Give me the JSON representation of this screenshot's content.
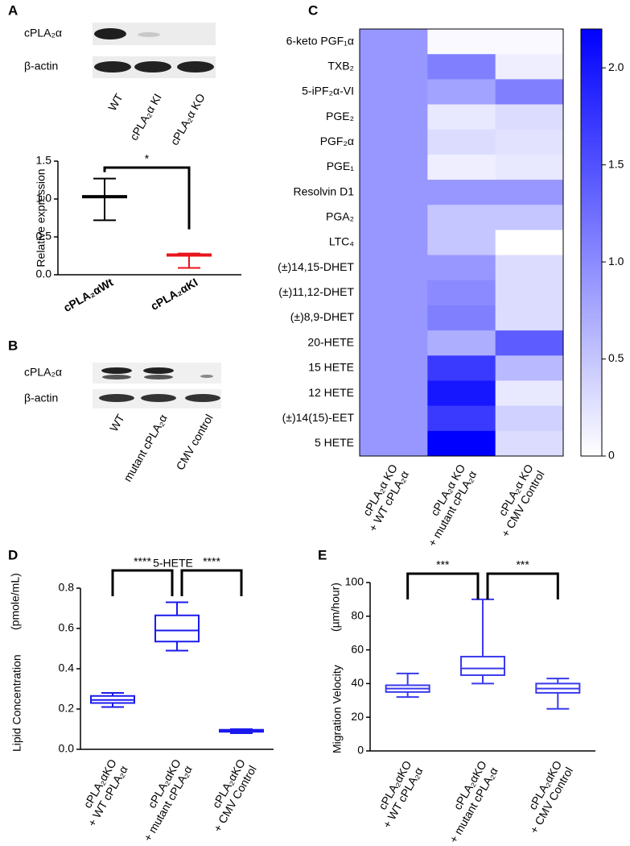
{
  "panel_labels": [
    "A",
    "B",
    "C",
    "D",
    "E"
  ],
  "blot_a": {
    "rows": [
      "cPLA₂α",
      "β-actin"
    ],
    "lanes": [
      "WT",
      "cPLA₂α KI",
      "cPLA₂α KO"
    ]
  },
  "blot_b": {
    "rows": [
      "cPLA₂α",
      "β-actin"
    ],
    "lanes": [
      "WT",
      "mutant cPLA₂α",
      "CMV control"
    ]
  },
  "chart_data": [
    {
      "type": "errorbar",
      "ylabel": "Relative expression",
      "categories": [
        "cPLA₂αWt",
        "cPLA₂αKI"
      ],
      "values": [
        1.03,
        0.26
      ],
      "lower": [
        0.72,
        0.09
      ],
      "upper": [
        1.27,
        0.28
      ],
      "colors": [
        "#000000",
        "#e8141b"
      ],
      "ylim": [
        0,
        1.5
      ],
      "yticks": [
        {
          "value": 0,
          "label": "0.0"
        },
        0.5,
        {
          "value": 1,
          "label": "1.0"
        },
        1.5
      ],
      "significance": [
        "*"
      ]
    },
    {
      "type": "heatmap",
      "rows": [
        "6-keto PGF₁α",
        "TXB₂",
        "5-iPF₂α-VI",
        "PGE₂",
        "PGF₂α",
        "PGE₁",
        "Resolvin D1",
        "PGA₂",
        "LTC₄",
        "(±)14,15-DHET",
        "(±)11,12-DHET",
        "(±)8,9-DHET",
        "20-HETE",
        "15 HETE",
        "12 HETE",
        "(±)14(15)-EET",
        "5 HETE"
      ],
      "columns": [
        [
          "cPLA₂α KO",
          "+ WT cPLA₂α"
        ],
        [
          "cPLA₂α KO",
          "+ mutant cPLA₂α"
        ],
        [
          "cPLA₂α KO",
          "+ CMV Control"
        ]
      ],
      "values": [
        [
          0.9,
          0.05,
          0.05
        ],
        [
          0.9,
          1.1,
          0.15
        ],
        [
          0.9,
          0.8,
          1.1
        ],
        [
          0.9,
          0.2,
          0.3
        ],
        [
          0.9,
          0.3,
          0.25
        ],
        [
          0.9,
          0.15,
          0.2
        ],
        [
          0.9,
          0.9,
          0.9
        ],
        [
          0.9,
          0.5,
          0.5
        ],
        [
          0.9,
          0.5,
          0
        ],
        [
          0.9,
          0.9,
          0.3
        ],
        [
          0.9,
          1.0,
          0.3
        ],
        [
          0.9,
          1.1,
          0.3
        ],
        [
          0.9,
          0.7,
          1.4
        ],
        [
          0.9,
          1.7,
          0.6
        ],
        [
          0.9,
          2.0,
          0.2
        ],
        [
          0.9,
          1.7,
          0.4
        ],
        [
          0.9,
          2.2,
          0.3
        ]
      ],
      "color": "#0000ff",
      "clim": [
        0,
        2.2
      ],
      "cticks": [
        0,
        0.5,
        {
          "value": 1,
          "label": "1.0"
        },
        1.5,
        {
          "value": 2,
          "label": "2.0"
        }
      ]
    },
    {
      "type": "box",
      "title": "5-HETE",
      "ylabel": "Lipid Concentration",
      "yunit": "(pmole/mL)",
      "categories": [
        [
          "cPLA₂αKO",
          "+ WT cPLA₂α"
        ],
        [
          "cPLA₂αKO",
          "+ mutant cPLA₂α"
        ],
        [
          "cPLA₂αKO",
          "+ CMV Control"
        ]
      ],
      "min": [
        0.21,
        0.49,
        0.08
      ],
      "q1": [
        0.23,
        0.535,
        0.087
      ],
      "median": [
        0.245,
        0.59,
        0.092
      ],
      "q3": [
        0.265,
        0.665,
        0.097
      ],
      "max": [
        0.28,
        0.73,
        0.1
      ],
      "color": "#1a1aee",
      "ylim": [
        0,
        0.8
      ],
      "yticks": [
        {
          "value": 0,
          "label": "0.0"
        },
        0.2,
        0.4,
        0.6,
        0.8
      ],
      "significance": [
        "****",
        "****"
      ]
    },
    {
      "type": "box",
      "ylabel": "Migration Velocity",
      "yunit": "(µm/hour)",
      "categories": [
        [
          "cPLA₂αKO",
          "+ WT cPLA₂α"
        ],
        [
          "cPLA₂αKO",
          "+ mutant cPLA₂α"
        ],
        [
          "cPLA₂αKO",
          "+ CMV Control"
        ]
      ],
      "min": [
        32,
        40,
        25
      ],
      "q1": [
        35,
        45,
        34.5
      ],
      "median": [
        37,
        49,
        37
      ],
      "q3": [
        39,
        56,
        40
      ],
      "max": [
        46,
        90,
        43
      ],
      "color": "#3a3aee",
      "ylim": [
        0,
        100
      ],
      "yticks": [
        0,
        20,
        40,
        60,
        80,
        100
      ],
      "significance": [
        "***",
        "***"
      ]
    }
  ]
}
